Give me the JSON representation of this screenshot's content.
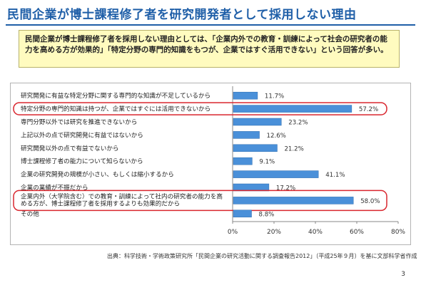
{
  "title": "民間企業が博士課程修了者を研究開発者として採用しない理由",
  "summary": "民間企業が博士課程修了者を採用しない理由としては、「企業内外での教育・訓練によって社会の研究者の能力を高める方が効果的」「特定分野の専門的知識をもつが、企業ではすぐ活用できない」という回答が多い。",
  "source": "出典：科学技術・学術政策研究所「民間企業の研究活動に関する調査報告2012」（平成25年９月）を基に文部科学省作成",
  "page_number": "3",
  "chart_data": {
    "type": "bar",
    "orientation": "horizontal",
    "categories": [
      "研究開発に有益な特定分野に関する専門的な知識が不足しているから",
      "特定分野の専門的知識は持つが、企業ではすぐには活用できないから",
      "専門分野以外では研究を推進できないから",
      "上記以外の点で研究開発に有益ではないから",
      "研究開発以外の点で有益でないから",
      "博士課程修了者の能力について知らないから",
      "企業の研究開発の規模が小さい、もしくは縮小するから",
      "企業の業績が不振だから",
      "企業内外（大学院含む）での教育・訓練によって社内の研究者の能力を高める方が、博士課程修了者を採用するよりも効果的だから",
      "その他"
    ],
    "values": [
      11.7,
      57.2,
      23.2,
      12.6,
      21.2,
      9.1,
      41.1,
      17.2,
      58.0,
      8.8
    ],
    "value_labels": [
      "11.7%",
      "57.2%",
      "23.2%",
      "12.6%",
      "21.2%",
      "9.1%",
      "41.1%",
      "17.2%",
      "58.0%",
      "8.8%"
    ],
    "xlim": [
      0,
      80
    ],
    "xticks": [
      0,
      20,
      40,
      60,
      80
    ],
    "xtick_labels": [
      "0%",
      "20%",
      "40%",
      "60%",
      "80%"
    ],
    "highlighted": [
      1,
      8
    ],
    "bar_color": "#4a90d9",
    "highlight_color": "#d9262e",
    "grid": false
  }
}
